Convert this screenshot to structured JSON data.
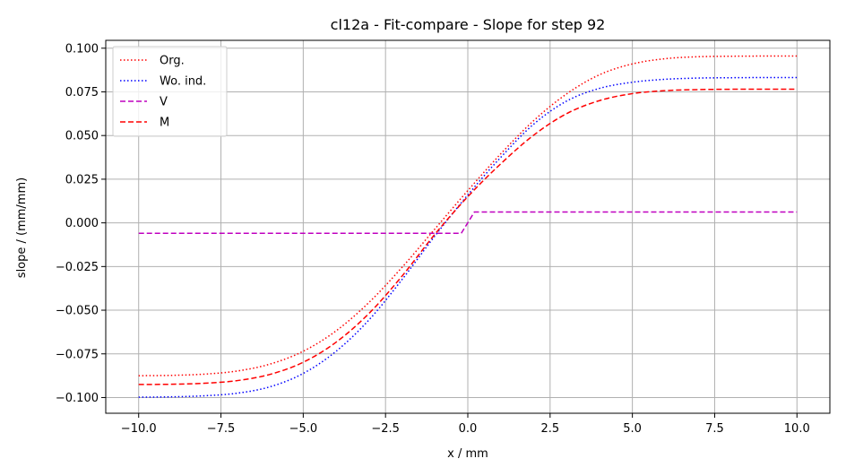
{
  "chart_data": {
    "type": "line",
    "title": "cl12a - Fit-compare - Slope for step 92",
    "xlabel": "x / mm",
    "ylabel": "slope / (mm/mm)",
    "xlim": [
      -11.0,
      11.0
    ],
    "ylim": [
      -0.109,
      0.1045
    ],
    "xticks": [
      -10.0,
      -7.5,
      -5.0,
      -2.5,
      0.0,
      2.5,
      5.0,
      7.5,
      10.0
    ],
    "xtick_labels": [
      "−10.0",
      "−7.5",
      "−5.0",
      "−2.5",
      "0.0",
      "2.5",
      "5.0",
      "7.5",
      "10.0"
    ],
    "yticks": [
      -0.1,
      -0.075,
      -0.05,
      -0.025,
      0.0,
      0.025,
      0.05,
      0.075,
      0.1
    ],
    "ytick_labels": [
      "−0.100",
      "−0.075",
      "−0.050",
      "−0.025",
      "0.000",
      "0.025",
      "0.050",
      "0.075",
      "0.100"
    ],
    "grid": true,
    "legend_position": "top-left",
    "series": [
      {
        "name": "Org.",
        "color": "#ff0000",
        "style": "dotted",
        "x": [
          -10,
          -9,
          -8,
          -7,
          -6,
          -5,
          -4,
          -3,
          -2,
          -1,
          0,
          1,
          2,
          3,
          4,
          5,
          6,
          7,
          8,
          9,
          10
        ],
        "y": [
          -0.0875,
          -0.0873,
          -0.0866,
          -0.0848,
          -0.0808,
          -0.0735,
          -0.0618,
          -0.0455,
          -0.0255,
          -0.0035,
          0.0185,
          0.0395,
          0.0585,
          0.0738,
          0.0848,
          0.091,
          0.094,
          0.0951,
          0.0954,
          0.0955,
          0.0955
        ]
      },
      {
        "name": "Wo. ind.",
        "color": "#0000ff",
        "style": "dotted",
        "x": [
          -10,
          -9,
          -8,
          -7,
          -6,
          -5,
          -4,
          -3,
          -2,
          -1,
          0,
          1,
          2,
          3,
          4,
          5,
          6,
          7,
          8,
          9,
          10
        ],
        "y": [
          -0.0998,
          -0.0996,
          -0.099,
          -0.0975,
          -0.0938,
          -0.0862,
          -0.0735,
          -0.0555,
          -0.0325,
          -0.0075,
          0.016,
          0.0375,
          0.0565,
          0.0697,
          0.077,
          0.0805,
          0.0822,
          0.0829,
          0.0831,
          0.0832,
          0.0832
        ]
      },
      {
        "name": "V",
        "color": "#bf00bf",
        "style": "dashed",
        "x": [
          -10,
          -0.2,
          0.2,
          10
        ],
        "y": [
          -0.006,
          -0.006,
          0.0062,
          0.0062
        ]
      },
      {
        "name": "M",
        "color": "#ff0000",
        "style": "dashed",
        "x": [
          -10,
          -9,
          -8,
          -7,
          -6,
          -5,
          -4,
          -3,
          -2,
          -1,
          0,
          1,
          2,
          3,
          4,
          5,
          6,
          7,
          8,
          9,
          10
        ],
        "y": [
          -0.0925,
          -0.0924,
          -0.0918,
          -0.0903,
          -0.0867,
          -0.0798,
          -0.0683,
          -0.0518,
          -0.0305,
          -0.0065,
          0.015,
          0.0338,
          0.0502,
          0.0625,
          0.07,
          0.074,
          0.0757,
          0.0763,
          0.0765,
          0.0765,
          0.0765
        ]
      }
    ]
  }
}
